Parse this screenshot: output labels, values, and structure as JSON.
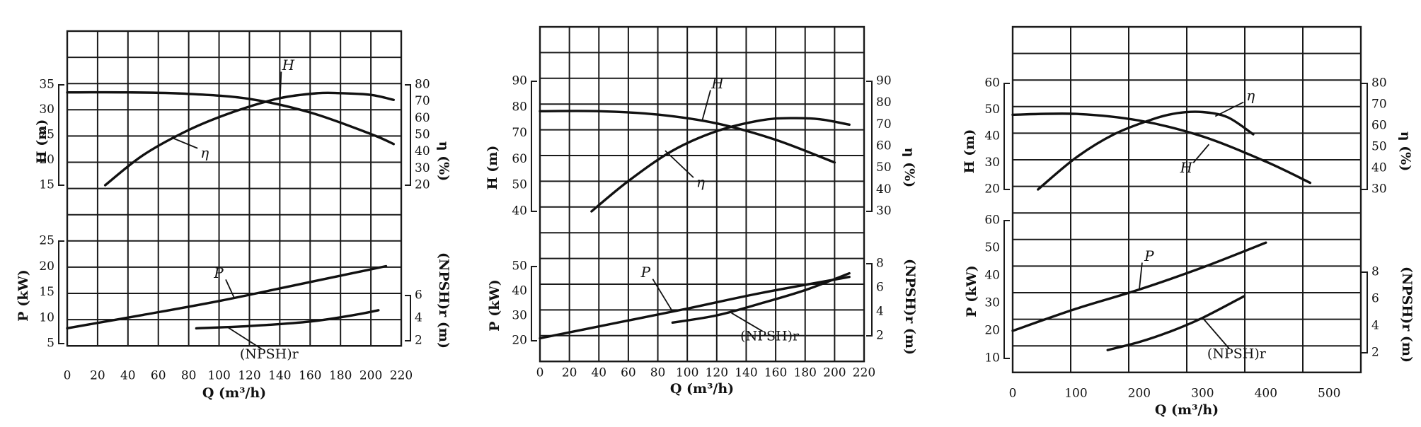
{
  "chart_data": [
    {
      "type": "line",
      "xlabel": "Q (m³/h)",
      "xlim": [
        0,
        220
      ],
      "xticks": [
        0,
        20,
        40,
        60,
        80,
        100,
        120,
        140,
        160,
        180,
        200,
        220
      ],
      "upper": {
        "left_axis": {
          "label": "H (m)",
          "lim": [
            15,
            35
          ],
          "ticks": [
            15,
            20,
            25,
            30,
            35
          ]
        },
        "right_axis": {
          "label": "η (%)",
          "lim": [
            20,
            80
          ],
          "ticks": [
            20,
            30,
            40,
            50,
            60,
            70,
            80
          ]
        },
        "series": [
          {
            "name": "H",
            "axis": "left",
            "x": [
              0,
              40,
              80,
              120,
              160,
              200,
              215
            ],
            "y": [
              33.5,
              33.5,
              33.2,
              32.2,
              29.5,
              25.2,
              23.2
            ]
          },
          {
            "name": "η",
            "axis": "right",
            "x": [
              25,
              50,
              80,
              110,
              140,
              165,
              180,
              200,
              215
            ],
            "y": [
              20,
              38,
              53,
              64,
              72,
              75,
              75,
              74,
              71
            ]
          }
        ]
      },
      "lower": {
        "left_axis": {
          "label": "P (kW)",
          "lim": [
            5,
            25
          ],
          "ticks": [
            5,
            10,
            15,
            20,
            25
          ]
        },
        "right_axis": {
          "label": "(NPSH)r (m)",
          "lim": [
            2,
            6
          ],
          "ticks": [
            2,
            4,
            6
          ]
        },
        "series": [
          {
            "name": "P",
            "axis": "left",
            "x": [
              0,
              50,
              100,
              150,
              210
            ],
            "y": [
              8,
              10.6,
              13.3,
              16.4,
              20.1
            ]
          },
          {
            "name": "(NPSH)r",
            "axis": "right",
            "x": [
              85,
              120,
              160,
              190,
              205
            ],
            "y": [
              3.1,
              3.3,
              3.7,
              4.3,
              4.7
            ]
          }
        ]
      }
    },
    {
      "type": "line",
      "xlabel": "Q (m³/h)",
      "xlim": [
        0,
        220
      ],
      "xticks": [
        0,
        20,
        40,
        60,
        80,
        100,
        120,
        140,
        160,
        180,
        200,
        220
      ],
      "upper": {
        "left_axis": {
          "label": "H (m)",
          "lim": [
            40,
            90
          ],
          "ticks": [
            40,
            50,
            60,
            70,
            80,
            90
          ]
        },
        "right_axis": {
          "label": "η (%)",
          "lim": [
            30,
            90
          ],
          "ticks": [
            30,
            40,
            50,
            60,
            70,
            80,
            90
          ]
        },
        "series": [
          {
            "name": "H",
            "axis": "left",
            "x": [
              0,
              40,
              80,
              120,
              160,
              200
            ],
            "y": [
              78.5,
              78.5,
              77.2,
              73.8,
              67.5,
              58.8
            ]
          },
          {
            "name": "η",
            "axis": "right",
            "x": [
              35,
              60,
              90,
              120,
              150,
              170,
              190,
              210
            ],
            "y": [
              30,
              44,
              58,
              67,
              72,
              73,
              72.5,
              70
            ]
          }
        ]
      },
      "lower": {
        "left_axis": {
          "label": "P (kW)",
          "lim": [
            20,
            50
          ],
          "ticks": [
            20,
            30,
            40,
            50
          ]
        },
        "right_axis": {
          "label": "(NPSH)r (m)",
          "lim": [
            2,
            8
          ],
          "ticks": [
            2,
            4,
            6,
            8
          ]
        },
        "series": [
          {
            "name": "P",
            "axis": "left",
            "x": [
              0,
              50,
              100,
              150,
              210
            ],
            "y": [
              21,
              27,
              33,
              39.3,
              45.8
            ]
          },
          {
            "name": "(NPSH)r",
            "axis": "right",
            "x": [
              90,
              120,
              150,
              180,
              210
            ],
            "y": [
              3.1,
              3.7,
              4.7,
              5.8,
              7.2
            ]
          }
        ]
      }
    },
    {
      "type": "line",
      "xlabel": "Q (m³/h)",
      "xlim": [
        0,
        550
      ],
      "xticks": [
        0,
        100,
        200,
        300,
        400,
        500
      ],
      "upper": {
        "left_axis": {
          "label": "H (m)",
          "lim": [
            20,
            60
          ],
          "ticks": [
            20,
            30,
            40,
            50,
            60
          ]
        },
        "right_axis": {
          "label": "η (%)",
          "lim": [
            30,
            80
          ],
          "ticks": [
            30,
            40,
            50,
            60,
            70,
            80
          ]
        },
        "series": [
          {
            "name": "H",
            "axis": "left",
            "x": [
              0,
              100,
              200,
              300,
              400,
              470
            ],
            "y": [
              48.2,
              48.5,
              46,
              40,
              30.5,
              22.5
            ]
          },
          {
            "name": "η",
            "axis": "right",
            "x": [
              40,
              100,
              160,
              220,
              260,
              300,
              340,
              380
            ],
            "y": [
              30,
              45,
              56,
              63,
              66,
              66.5,
              64,
              56
            ]
          }
        ]
      },
      "lower": {
        "left_axis": {
          "label": "P (kW)",
          "lim": [
            10,
            60
          ],
          "ticks": [
            10,
            20,
            30,
            40,
            50,
            60
          ]
        },
        "right_axis": {
          "label": "(NPSH)r (m)",
          "lim": [
            2,
            8
          ],
          "ticks": [
            2,
            4,
            6,
            8
          ]
        },
        "series": [
          {
            "name": "P",
            "axis": "left",
            "x": [
              0,
              100,
              200,
              300,
              400
            ],
            "y": [
              20,
              28,
              35,
              43,
              52
            ]
          },
          {
            "name": "(NPSH)r",
            "axis": "right",
            "x": [
              150,
              200,
              250,
              300,
              365
            ],
            "y": [
              2.2,
              2.8,
              3.6,
              4.6,
              6.2
            ]
          }
        ]
      }
    }
  ]
}
